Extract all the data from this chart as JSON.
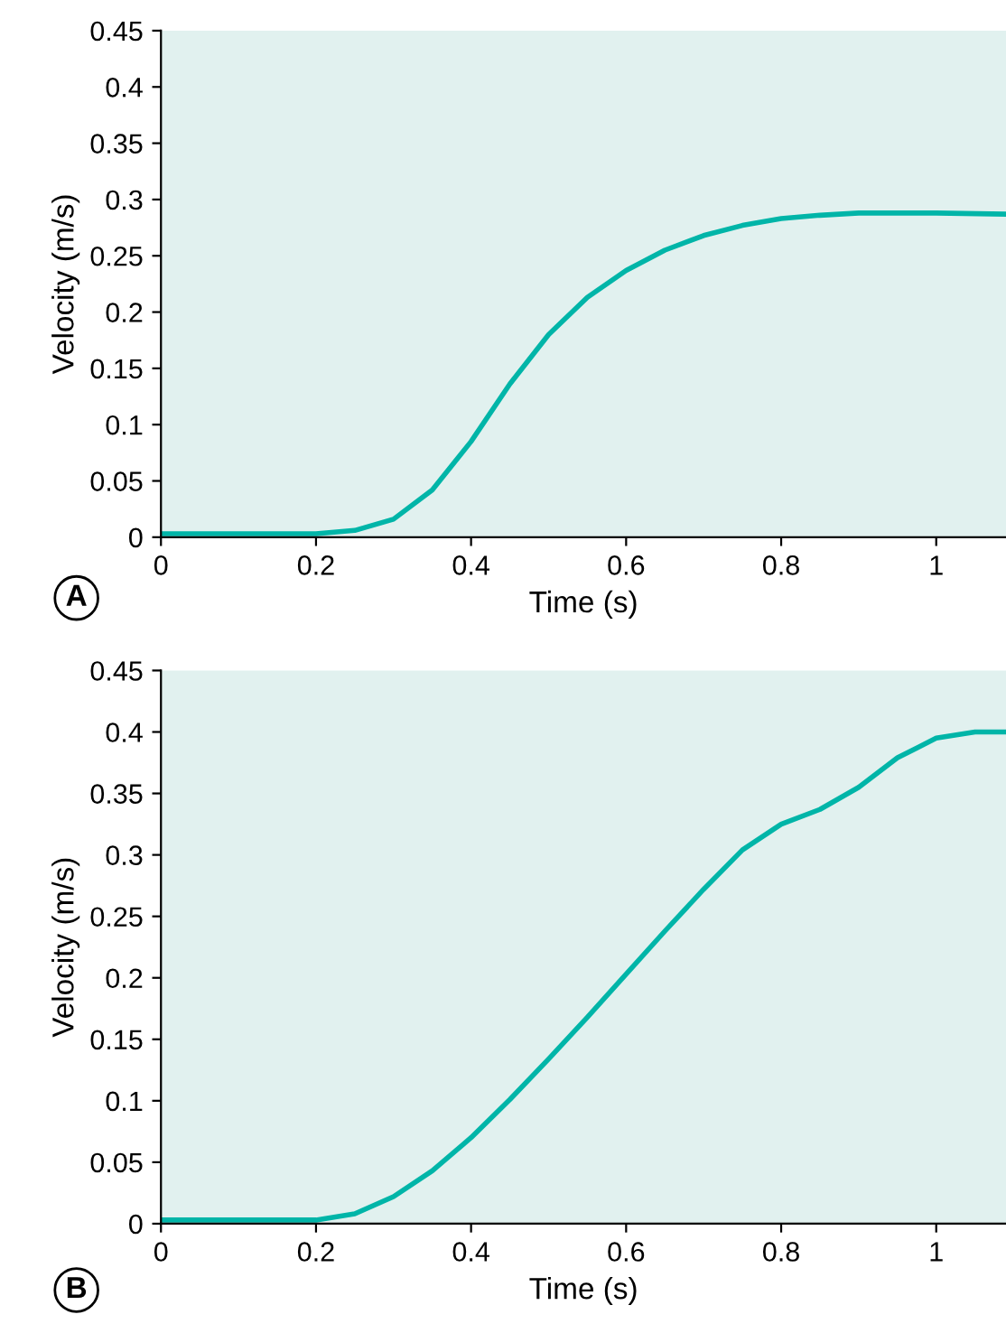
{
  "chart_data": [
    {
      "type": "line",
      "xlabel": "Time (s)",
      "ylabel": "Velocity (m/s)",
      "annotations": [
        "A"
      ],
      "grid": false,
      "xlim": [
        0,
        1.09
      ],
      "ylim": [
        0,
        0.45
      ],
      "xticks": [
        0,
        0.2,
        0.4,
        0.6,
        0.8,
        1
      ],
      "yticks": [
        0,
        0.05,
        0.1,
        0.15,
        0.2,
        0.25,
        0.3,
        0.35,
        0.4,
        0.45
      ],
      "series": [
        {
          "color": "#00b5a8",
          "x": [
            0,
            0.1,
            0.2,
            0.25,
            0.3,
            0.35,
            0.4,
            0.45,
            0.5,
            0.55,
            0.6,
            0.65,
            0.7,
            0.75,
            0.8,
            0.85,
            0.9,
            0.95,
            1.0,
            1.09
          ],
          "values": [
            0.003,
            0.003,
            0.003,
            0.006,
            0.016,
            0.042,
            0.085,
            0.136,
            0.18,
            0.213,
            0.237,
            0.255,
            0.268,
            0.277,
            0.283,
            0.286,
            0.288,
            0.288,
            0.288,
            0.287
          ]
        }
      ]
    },
    {
      "type": "line",
      "xlabel": "Time (s)",
      "ylabel": "Velocity (m/s)",
      "annotations": [
        "B"
      ],
      "grid": false,
      "xlim": [
        0,
        1.09
      ],
      "ylim": [
        0,
        0.45
      ],
      "xticks": [
        0,
        0.2,
        0.4,
        0.6,
        0.8,
        1
      ],
      "yticks": [
        0,
        0.05,
        0.1,
        0.15,
        0.2,
        0.25,
        0.3,
        0.35,
        0.4,
        0.45
      ],
      "series": [
        {
          "color": "#00b5a8",
          "x": [
            0,
            0.1,
            0.2,
            0.25,
            0.3,
            0.35,
            0.4,
            0.45,
            0.5,
            0.55,
            0.6,
            0.65,
            0.7,
            0.75,
            0.8,
            0.85,
            0.9,
            0.95,
            1.0,
            1.05,
            1.09
          ],
          "values": [
            0.003,
            0.003,
            0.003,
            0.008,
            0.022,
            0.043,
            0.07,
            0.101,
            0.134,
            0.168,
            0.203,
            0.238,
            0.272,
            0.304,
            0.325,
            0.337,
            0.355,
            0.379,
            0.395,
            0.4,
            0.4
          ]
        }
      ]
    }
  ]
}
